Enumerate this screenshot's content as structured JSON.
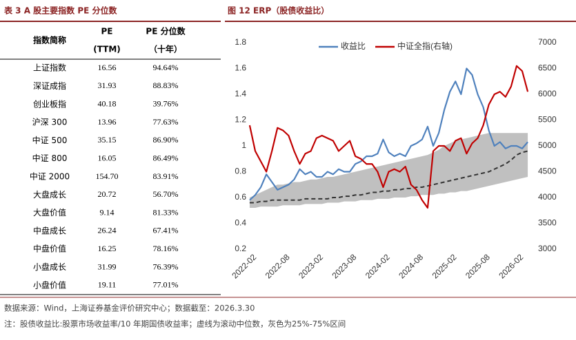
{
  "table": {
    "title": "表 3 A 股主要指数 PE 分位数",
    "header": [
      [
        "指数简称"
      ],
      [
        "PE",
        "(TTM)"
      ],
      [
        "PE 分位数",
        "（十年）"
      ]
    ],
    "rows": [
      [
        "上证指数",
        "16.56",
        "94.64%"
      ],
      [
        "深证成指",
        "31.93",
        "88.83%"
      ],
      [
        "创业板指",
        "40.18",
        "39.76%"
      ],
      [
        "沪深 300",
        "13.96",
        "77.63%"
      ],
      [
        "中证 500",
        "35.15",
        "86.90%"
      ],
      [
        "中证 800",
        "16.05",
        "86.49%"
      ],
      [
        "中证 2000",
        "154.70",
        "83.91%"
      ],
      [
        "大盘成长",
        "20.72",
        "56.70%"
      ],
      [
        "大盘价值",
        "9.14",
        "81.33%"
      ],
      [
        "中盘成长",
        "26.24",
        "67.41%"
      ],
      [
        "中盘价值",
        "16.25",
        "78.16%"
      ],
      [
        "小盘成长",
        "31.99",
        "76.39%"
      ],
      [
        "小盘价值",
        "19.11",
        "77.01%"
      ]
    ]
  },
  "chart_data": {
    "type": "line",
    "title": "图 12 ERP（股债收益比）",
    "x": [
      "2022-01",
      "2022-02",
      "2022-03",
      "2022-04",
      "2022-05",
      "2022-06",
      "2022-07",
      "2022-08",
      "2022-09",
      "2022-10",
      "2022-11",
      "2022-12",
      "2023-01",
      "2023-02",
      "2023-03",
      "2023-04",
      "2023-05",
      "2023-06",
      "2023-07",
      "2023-08",
      "2023-09",
      "2023-10",
      "2023-11",
      "2023-12",
      "2024-01",
      "2024-02",
      "2024-03",
      "2024-04",
      "2024-05",
      "2024-06",
      "2024-07",
      "2024-08",
      "2024-09",
      "2024-10",
      "2024-11",
      "2024-12",
      "2025-01",
      "2025-02",
      "2025-03",
      "2025-04",
      "2025-05",
      "2025-06",
      "2025-07",
      "2025-08",
      "2025-09",
      "2025-10",
      "2025-11",
      "2025-12",
      "2026-01",
      "2026-02",
      "2026-03"
    ],
    "xticks": [
      "2022-02",
      "2022-08",
      "2023-02",
      "2023-08",
      "2024-02",
      "2024-08",
      "2025-02",
      "2025-08",
      "2026-02"
    ],
    "ylim": [
      0.2,
      1.8
    ],
    "yticks": [
      0.2,
      0.4,
      0.6,
      0.8,
      1,
      1.2,
      1.4,
      1.6,
      1.8
    ],
    "y2lim": [
      3000,
      7000
    ],
    "y2ticks": [
      3000,
      3500,
      4000,
      4500,
      5000,
      5500,
      6000,
      6500,
      7000
    ],
    "band": {
      "color": "#c0c0c0",
      "lower": [
        0.52,
        0.52,
        0.53,
        0.53,
        0.53,
        0.53,
        0.54,
        0.54,
        0.54,
        0.54,
        0.55,
        0.55,
        0.55,
        0.55,
        0.56,
        0.56,
        0.56,
        0.57,
        0.57,
        0.57,
        0.58,
        0.58,
        0.58,
        0.59,
        0.59,
        0.59,
        0.6,
        0.6,
        0.6,
        0.61,
        0.61,
        0.62,
        0.62,
        0.62,
        0.63,
        0.63,
        0.64,
        0.64,
        0.65,
        0.65,
        0.66,
        0.67,
        0.68,
        0.69,
        0.7,
        0.71,
        0.72,
        0.73,
        0.74,
        0.75,
        0.76
      ],
      "upper": [
        0.6,
        0.62,
        0.64,
        0.66,
        0.68,
        0.7,
        0.7,
        0.71,
        0.72,
        0.72,
        0.73,
        0.74,
        0.74,
        0.75,
        0.76,
        0.76,
        0.77,
        0.78,
        0.79,
        0.8,
        0.81,
        0.82,
        0.83,
        0.84,
        0.85,
        0.86,
        0.87,
        0.88,
        0.89,
        0.9,
        0.91,
        0.92,
        0.93,
        0.95,
        0.97,
        1.0,
        1.02,
        1.04,
        1.05,
        1.06,
        1.07,
        1.08,
        1.09,
        1.1,
        1.1,
        1.1,
        1.1,
        1.1,
        1.1,
        1.1,
        1.1
      ]
    },
    "median": {
      "color": "#333333",
      "dashed": true,
      "values": [
        0.56,
        0.56,
        0.57,
        0.57,
        0.58,
        0.58,
        0.58,
        0.58,
        0.58,
        0.58,
        0.59,
        0.59,
        0.59,
        0.59,
        0.59,
        0.6,
        0.6,
        0.61,
        0.61,
        0.62,
        0.62,
        0.63,
        0.64,
        0.64,
        0.65,
        0.65,
        0.66,
        0.66,
        0.67,
        0.67,
        0.68,
        0.68,
        0.69,
        0.7,
        0.71,
        0.72,
        0.73,
        0.74,
        0.75,
        0.76,
        0.77,
        0.78,
        0.79,
        0.8,
        0.82,
        0.84,
        0.86,
        0.89,
        0.93,
        0.95,
        0.96
      ]
    },
    "series": [
      {
        "name": "收益比",
        "color": "#4f81bd",
        "values": [
          0.58,
          0.62,
          0.68,
          0.78,
          0.72,
          0.66,
          0.68,
          0.7,
          0.74,
          0.82,
          0.78,
          0.8,
          0.76,
          0.76,
          0.8,
          0.78,
          0.82,
          0.8,
          0.8,
          0.86,
          0.88,
          0.92,
          0.92,
          0.94,
          1.05,
          0.95,
          0.92,
          0.94,
          0.92,
          1.0,
          1.02,
          1.05,
          1.15,
          1.0,
          1.1,
          1.28,
          1.42,
          1.5,
          1.4,
          1.6,
          1.55,
          1.4,
          1.3,
          1.12,
          1.0,
          1.03,
          0.98,
          1.0,
          1.0,
          0.98,
          1.03
        ]
      },
      {
        "name": "中证全指(右轴)",
        "color": "#c00000",
        "axis": "y2",
        "values": [
          5400,
          4900,
          4700,
          4500,
          4900,
          5350,
          5300,
          5200,
          4900,
          4650,
          4850,
          4900,
          5150,
          5200,
          5150,
          5100,
          4900,
          5000,
          5100,
          4800,
          4750,
          4650,
          4650,
          4500,
          4200,
          4500,
          4550,
          4500,
          4600,
          4250,
          4150,
          3950,
          3800,
          4900,
          5000,
          5000,
          4900,
          5100,
          5150,
          4850,
          5050,
          5150,
          5400,
          5800,
          6000,
          6050,
          5950,
          6150,
          6550,
          6450,
          6050
        ]
      }
    ]
  },
  "notes": [
    "数据来源：Wind，上海证券基金评价研究中心；数据截至：2026.3.30",
    "注：股债收益比:股票市场收益率/10 年期国债收益率；虚线为滚动中位数，灰色为25%-75%区间"
  ]
}
